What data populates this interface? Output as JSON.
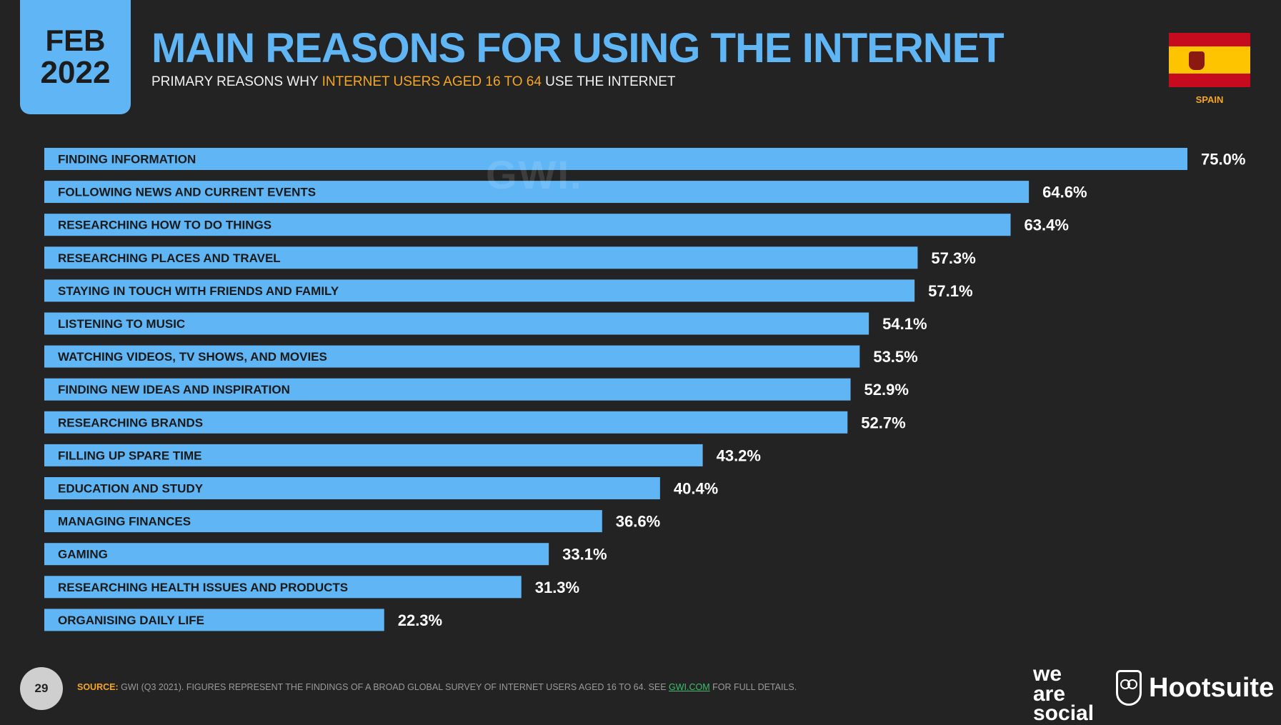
{
  "header": {
    "month": "FEB",
    "year": "2022",
    "title": "MAIN REASONS FOR USING THE INTERNET",
    "subtitle_pre": "PRIMARY REASONS WHY ",
    "subtitle_highlight": "INTERNET USERS AGED 16 TO 64",
    "subtitle_post": " USE THE INTERNET",
    "country": "SPAIN",
    "watermark": "GWI."
  },
  "colors": {
    "accent": "#60b5f5",
    "background": "#232323",
    "highlight": "#f5a623",
    "flag_red": "#c60b1e",
    "flag_yellow": "#ffc400"
  },
  "icons": {
    "flag": "spain-flag-icon",
    "owl": "hootsuite-owl-icon"
  },
  "chart_data": {
    "type": "bar",
    "orientation": "horizontal",
    "categories": [
      "FINDING INFORMATION",
      "FOLLOWING NEWS AND CURRENT EVENTS",
      "RESEARCHING HOW TO DO THINGS",
      "RESEARCHING PLACES AND TRAVEL",
      "STAYING IN TOUCH WITH FRIENDS AND FAMILY",
      "LISTENING TO MUSIC",
      "WATCHING VIDEOS, TV SHOWS, AND MOVIES",
      "FINDING NEW IDEAS AND INSPIRATION",
      "RESEARCHING BRANDS",
      "FILLING UP SPARE TIME",
      "EDUCATION AND STUDY",
      "MANAGING FINANCES",
      "GAMING",
      "RESEARCHING HEALTH ISSUES AND PRODUCTS",
      "ORGANISING DAILY LIFE"
    ],
    "values": [
      75.0,
      64.6,
      63.4,
      57.3,
      57.1,
      54.1,
      53.5,
      52.9,
      52.7,
      43.2,
      40.4,
      36.6,
      33.1,
      31.3,
      22.3
    ],
    "value_labels": [
      "75.0%",
      "64.6%",
      "63.4%",
      "57.3%",
      "57.1%",
      "54.1%",
      "53.5%",
      "52.9%",
      "52.7%",
      "43.2%",
      "40.4%",
      "36.6%",
      "33.1%",
      "31.3%",
      "22.3%"
    ],
    "xlim": [
      0,
      75
    ],
    "bar_color": "#60b5f5",
    "grid": false,
    "legend": "none"
  },
  "footer": {
    "page_number": "29",
    "source_label": "SOURCE:",
    "source_text": " GWI (Q3 2021). FIGURES REPRESENT THE FINDINGS OF A BROAD GLOBAL SURVEY OF INTERNET USERS AGED 16 TO 64. SEE ",
    "source_link": "GWI.COM",
    "source_suffix": " FOR FULL DETAILS.",
    "brand_we": "we",
    "brand_are": "are",
    "brand_social": "social",
    "brand_hootsuite": "Hootsuite"
  }
}
